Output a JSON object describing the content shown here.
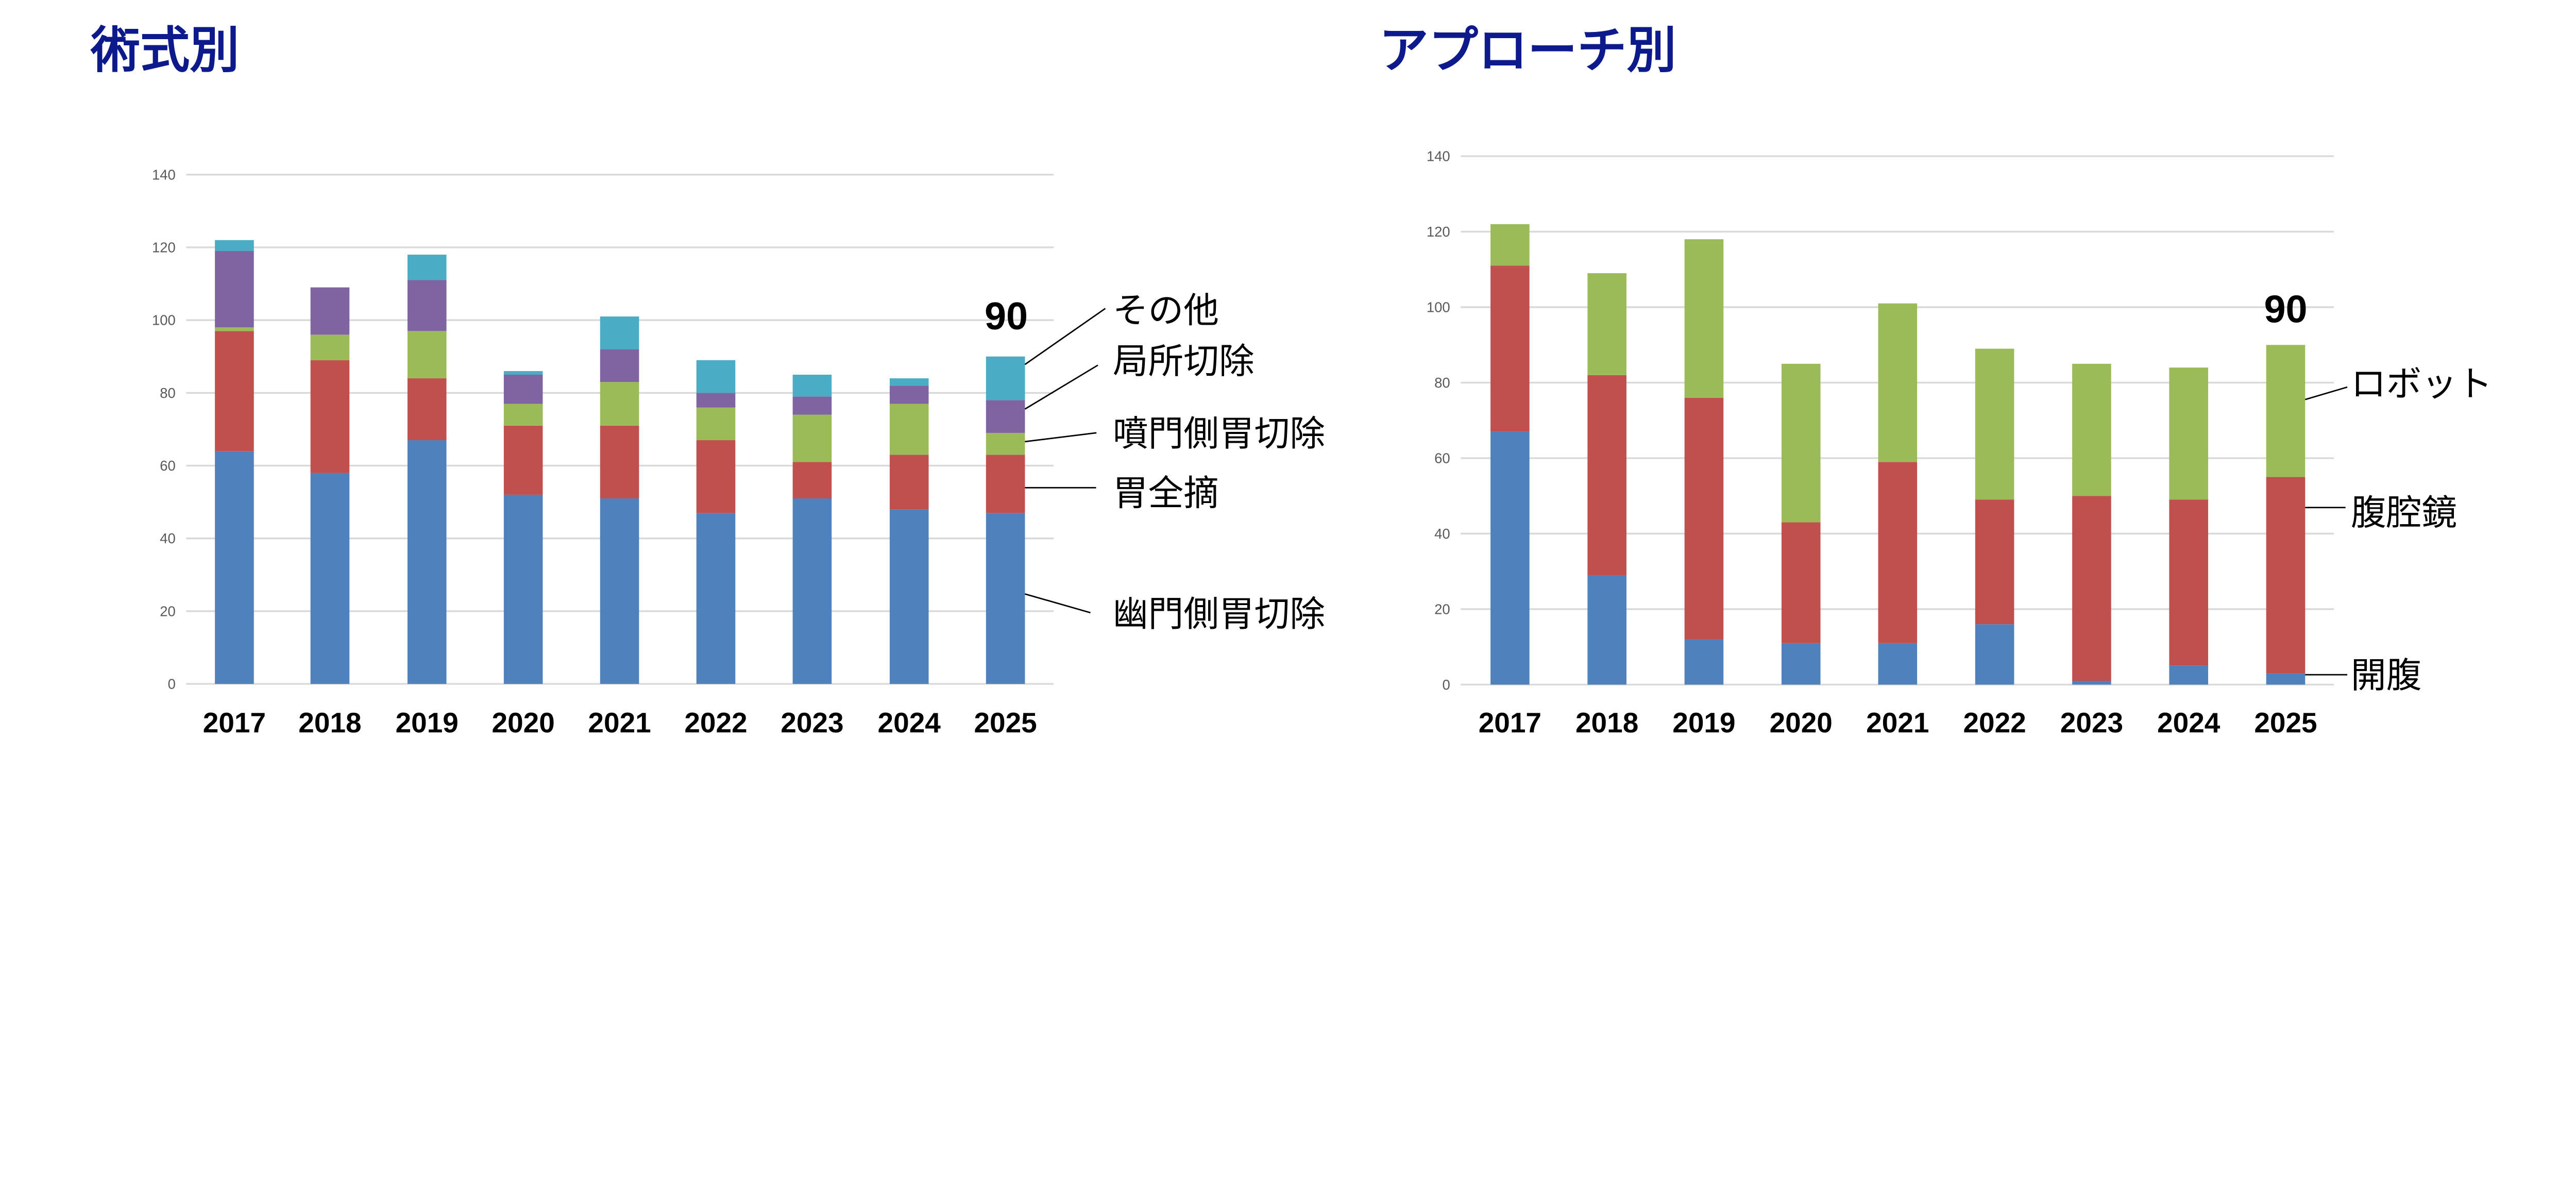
{
  "chart_data": [
    {
      "type": "bar",
      "stacked": true,
      "title": "術式別",
      "categories": [
        "2017",
        "2018",
        "2019",
        "2020",
        "2021",
        "2022",
        "2023",
        "2024",
        "2025"
      ],
      "ylim": [
        0,
        140
      ],
      "yticks": [
        0,
        20,
        40,
        60,
        80,
        100,
        120,
        140
      ],
      "grid": true,
      "legend": "right, labels with leader lines",
      "total_label": "90",
      "series": [
        {
          "name": "幽門側胃切除",
          "color": "#4f81bd",
          "values": [
            64,
            58,
            67,
            52,
            51,
            47,
            51,
            48,
            47
          ]
        },
        {
          "name": "胃全摘",
          "color": "#c0504d",
          "values": [
            33,
            31,
            17,
            19,
            20,
            20,
            10,
            15,
            16
          ]
        },
        {
          "name": "噴門側胃切除",
          "color": "#9bbb59",
          "values": [
            1,
            7,
            13,
            6,
            12,
            9,
            13,
            14,
            6
          ]
        },
        {
          "name": "局所切除",
          "color": "#8064a2",
          "values": [
            21,
            13,
            14,
            8,
            9,
            4,
            5,
            5,
            9
          ]
        },
        {
          "name": "その他",
          "color": "#4bacc6",
          "values": [
            3,
            0,
            7,
            1,
            9,
            9,
            6,
            2,
            12
          ]
        }
      ]
    },
    {
      "type": "bar",
      "stacked": true,
      "title": "アプローチ別",
      "categories": [
        "2017",
        "2018",
        "2019",
        "2020",
        "2021",
        "2022",
        "2023",
        "2024",
        "2025"
      ],
      "ylim": [
        0,
        140
      ],
      "yticks": [
        0,
        20,
        40,
        60,
        80,
        100,
        120,
        140
      ],
      "grid": true,
      "legend": "right, labels with leader lines",
      "total_label": "90",
      "series": [
        {
          "name": "開腹",
          "color": "#4f81bd",
          "values": [
            67,
            29,
            12,
            11,
            11,
            16,
            1,
            5,
            3
          ]
        },
        {
          "name": "腹腔鏡",
          "color": "#c0504d",
          "values": [
            44,
            53,
            64,
            32,
            48,
            33,
            49,
            44,
            52
          ]
        },
        {
          "name": "ロボット",
          "color": "#9bbb59",
          "values": [
            11,
            27,
            42,
            42,
            42,
            40,
            35,
            35,
            35
          ]
        }
      ]
    }
  ]
}
